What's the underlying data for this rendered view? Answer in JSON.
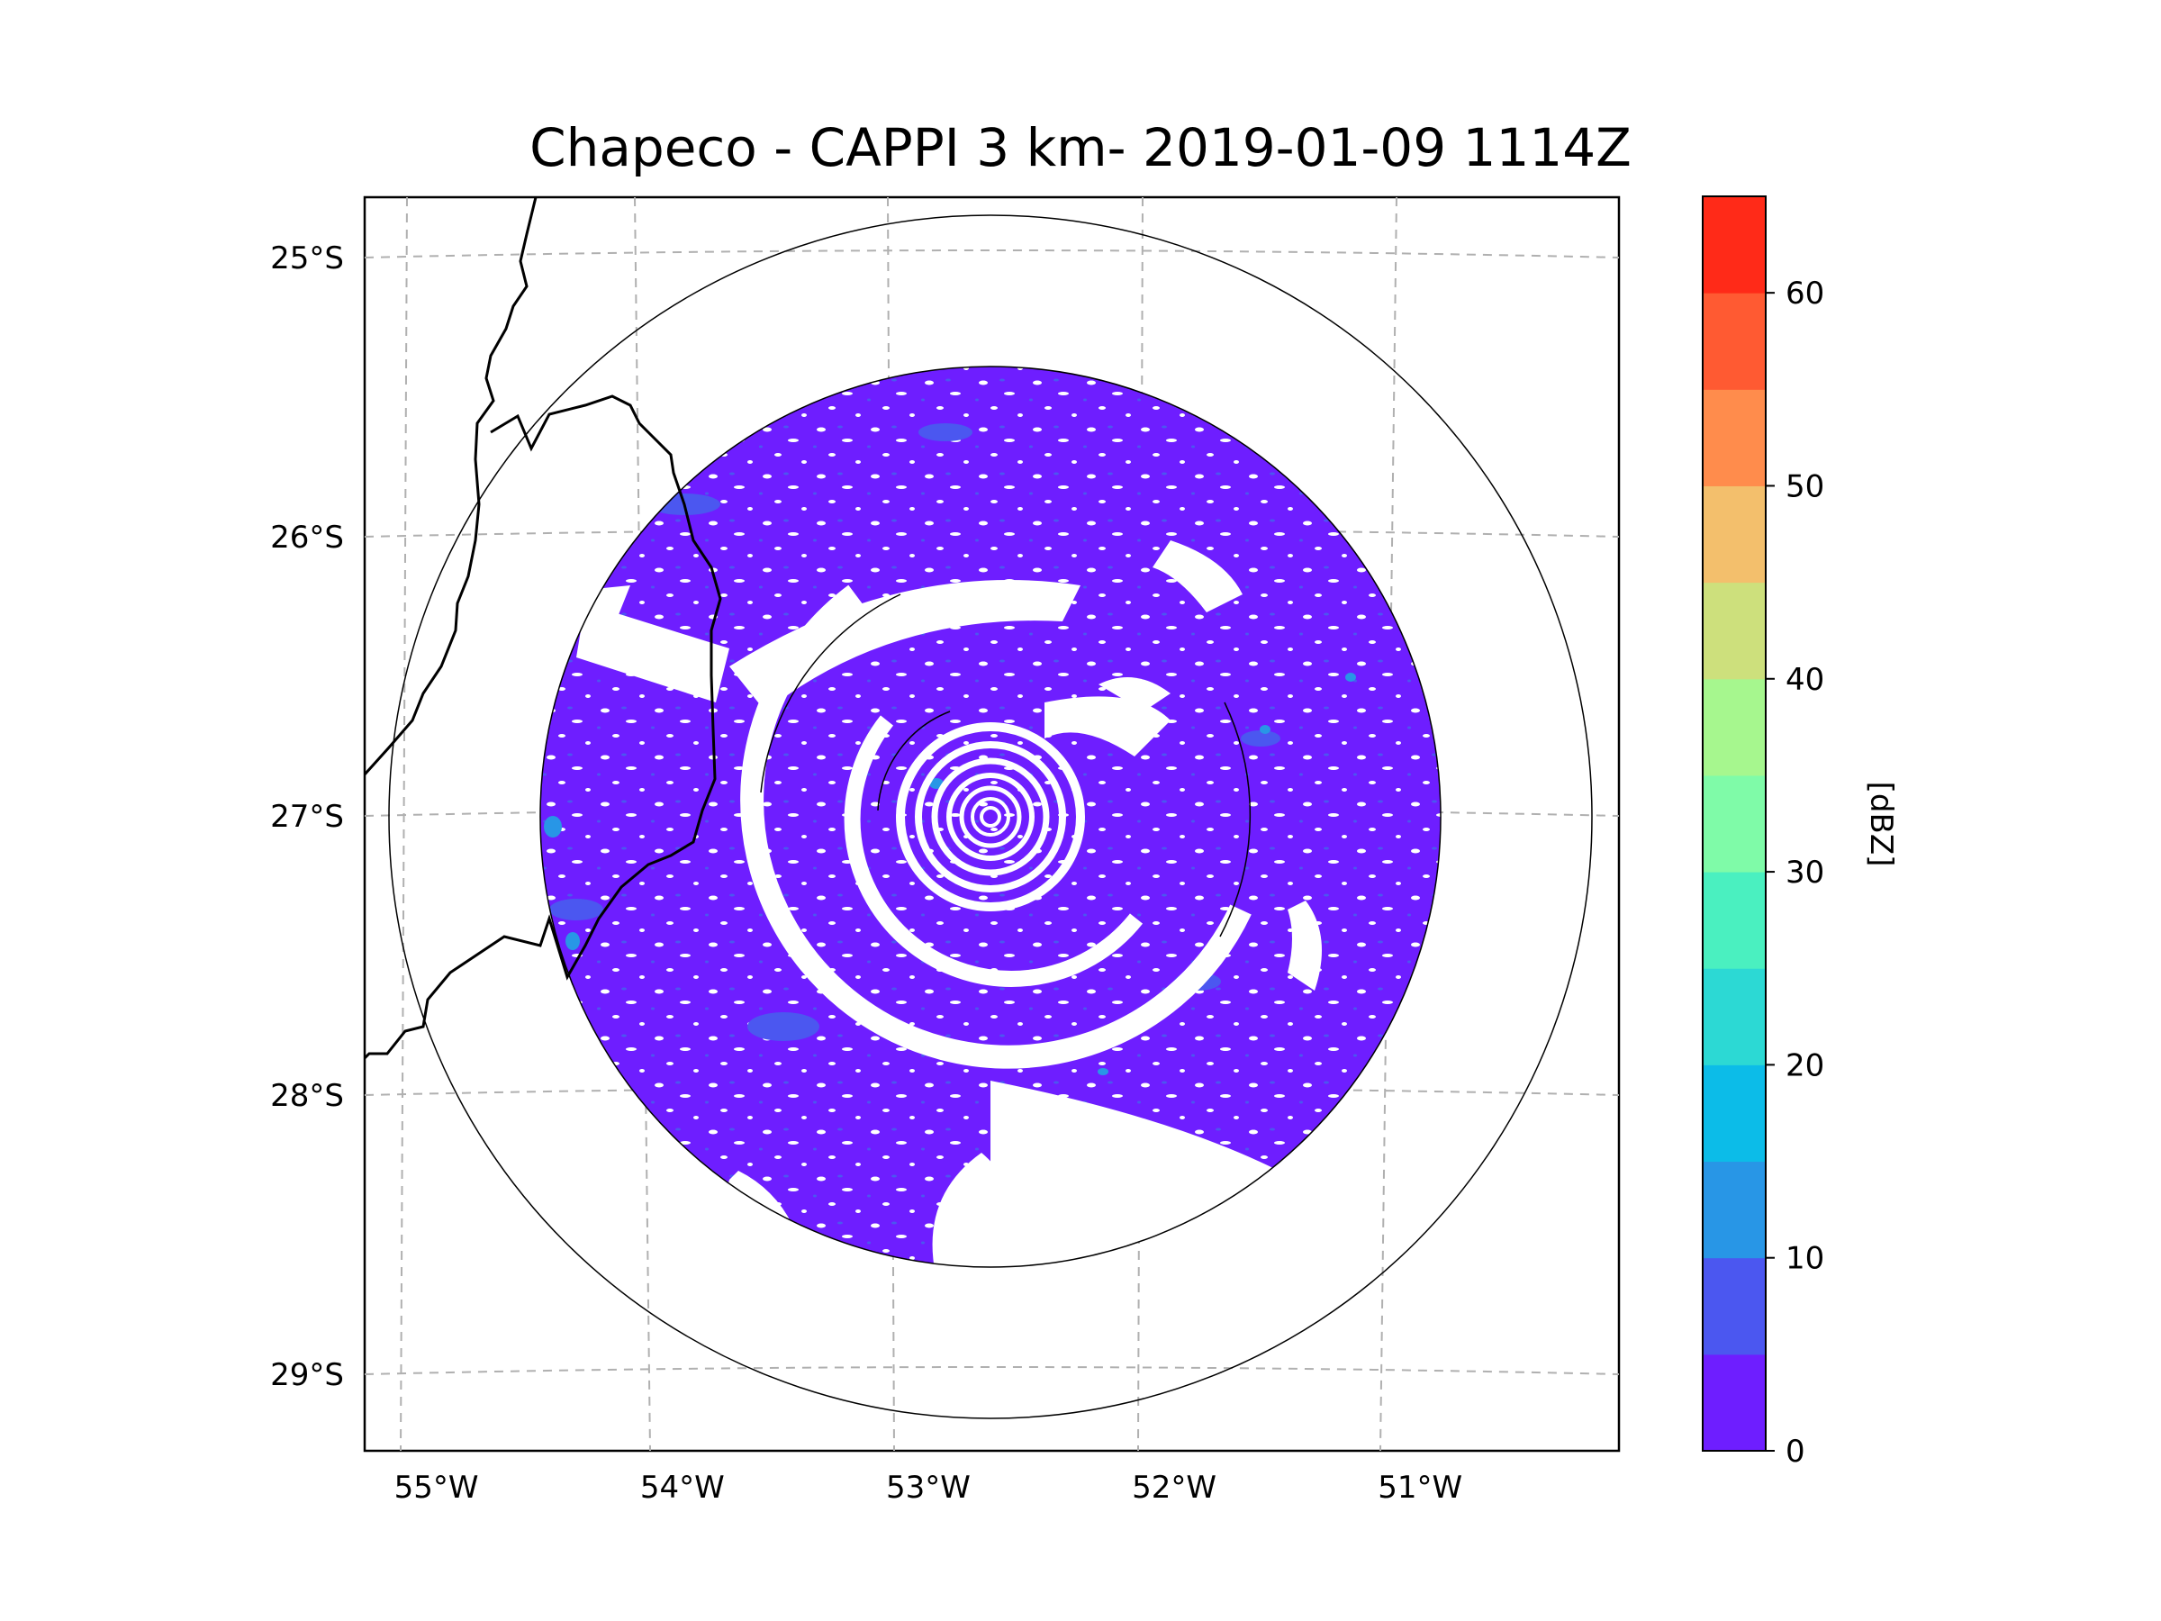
{
  "chart_data": {
    "type": "heatmap",
    "title": "Chapeco - CAPPI 3 km- 2019-01-09 1114Z",
    "radar": "Chapeco",
    "product": "CAPPI 3 km",
    "datetime": "2019-01-09 1114Z",
    "center": {
      "lon": -52.6,
      "lat": -27.0
    },
    "x_ticks": [
      "55°W",
      "54°W",
      "53°W",
      "52°W",
      "51°W"
    ],
    "x_tick_values": [
      -55,
      -54,
      -53,
      -52,
      -51
    ],
    "y_ticks": [
      "25°S",
      "26°S",
      "27°S",
      "28°S",
      "29°S"
    ],
    "y_tick_values": [
      -25,
      -26,
      -27,
      -28,
      -29
    ],
    "xlim": [
      -55.2,
      -50.1
    ],
    "ylim": [
      -29.3,
      -24.8
    ],
    "grid": true,
    "range_rings": [
      "inner",
      "data-limit",
      "outer"
    ],
    "colorbar": {
      "label": "[dBZ]",
      "ticks": [
        "0",
        "10",
        "20",
        "30",
        "40",
        "50",
        "60"
      ],
      "tick_values": [
        0,
        10,
        20,
        30,
        40,
        50,
        60
      ],
      "range": [
        0,
        65
      ],
      "bins": [
        {
          "from": 0,
          "to": 5,
          "color": "#6e1eff"
        },
        {
          "from": 5,
          "to": 10,
          "color": "#4b57f0"
        },
        {
          "from": 10,
          "to": 15,
          "color": "#2896e6"
        },
        {
          "from": 15,
          "to": 20,
          "color": "#0cbce8"
        },
        {
          "from": 20,
          "to": 25,
          "color": "#2cd9d4"
        },
        {
          "from": 25,
          "to": 30,
          "color": "#4af0c0"
        },
        {
          "from": 30,
          "to": 35,
          "color": "#7ffba8"
        },
        {
          "from": 35,
          "to": 40,
          "color": "#a6f78e"
        },
        {
          "from": 40,
          "to": 45,
          "color": "#cde07c"
        },
        {
          "from": 45,
          "to": 50,
          "color": "#f3bf6c"
        },
        {
          "from": 50,
          "to": 55,
          "color": "#ff8c4c"
        },
        {
          "from": 55,
          "to": 60,
          "color": "#ff5a32"
        },
        {
          "from": 60,
          "to": 65,
          "color": "#ff2a18"
        }
      ]
    },
    "dominant_reflectivity_dbz": "0-5",
    "colors": {
      "echo": "#6e1eff",
      "echo_light": "#4b57f0",
      "echo_cyan": "#2896e6"
    }
  }
}
